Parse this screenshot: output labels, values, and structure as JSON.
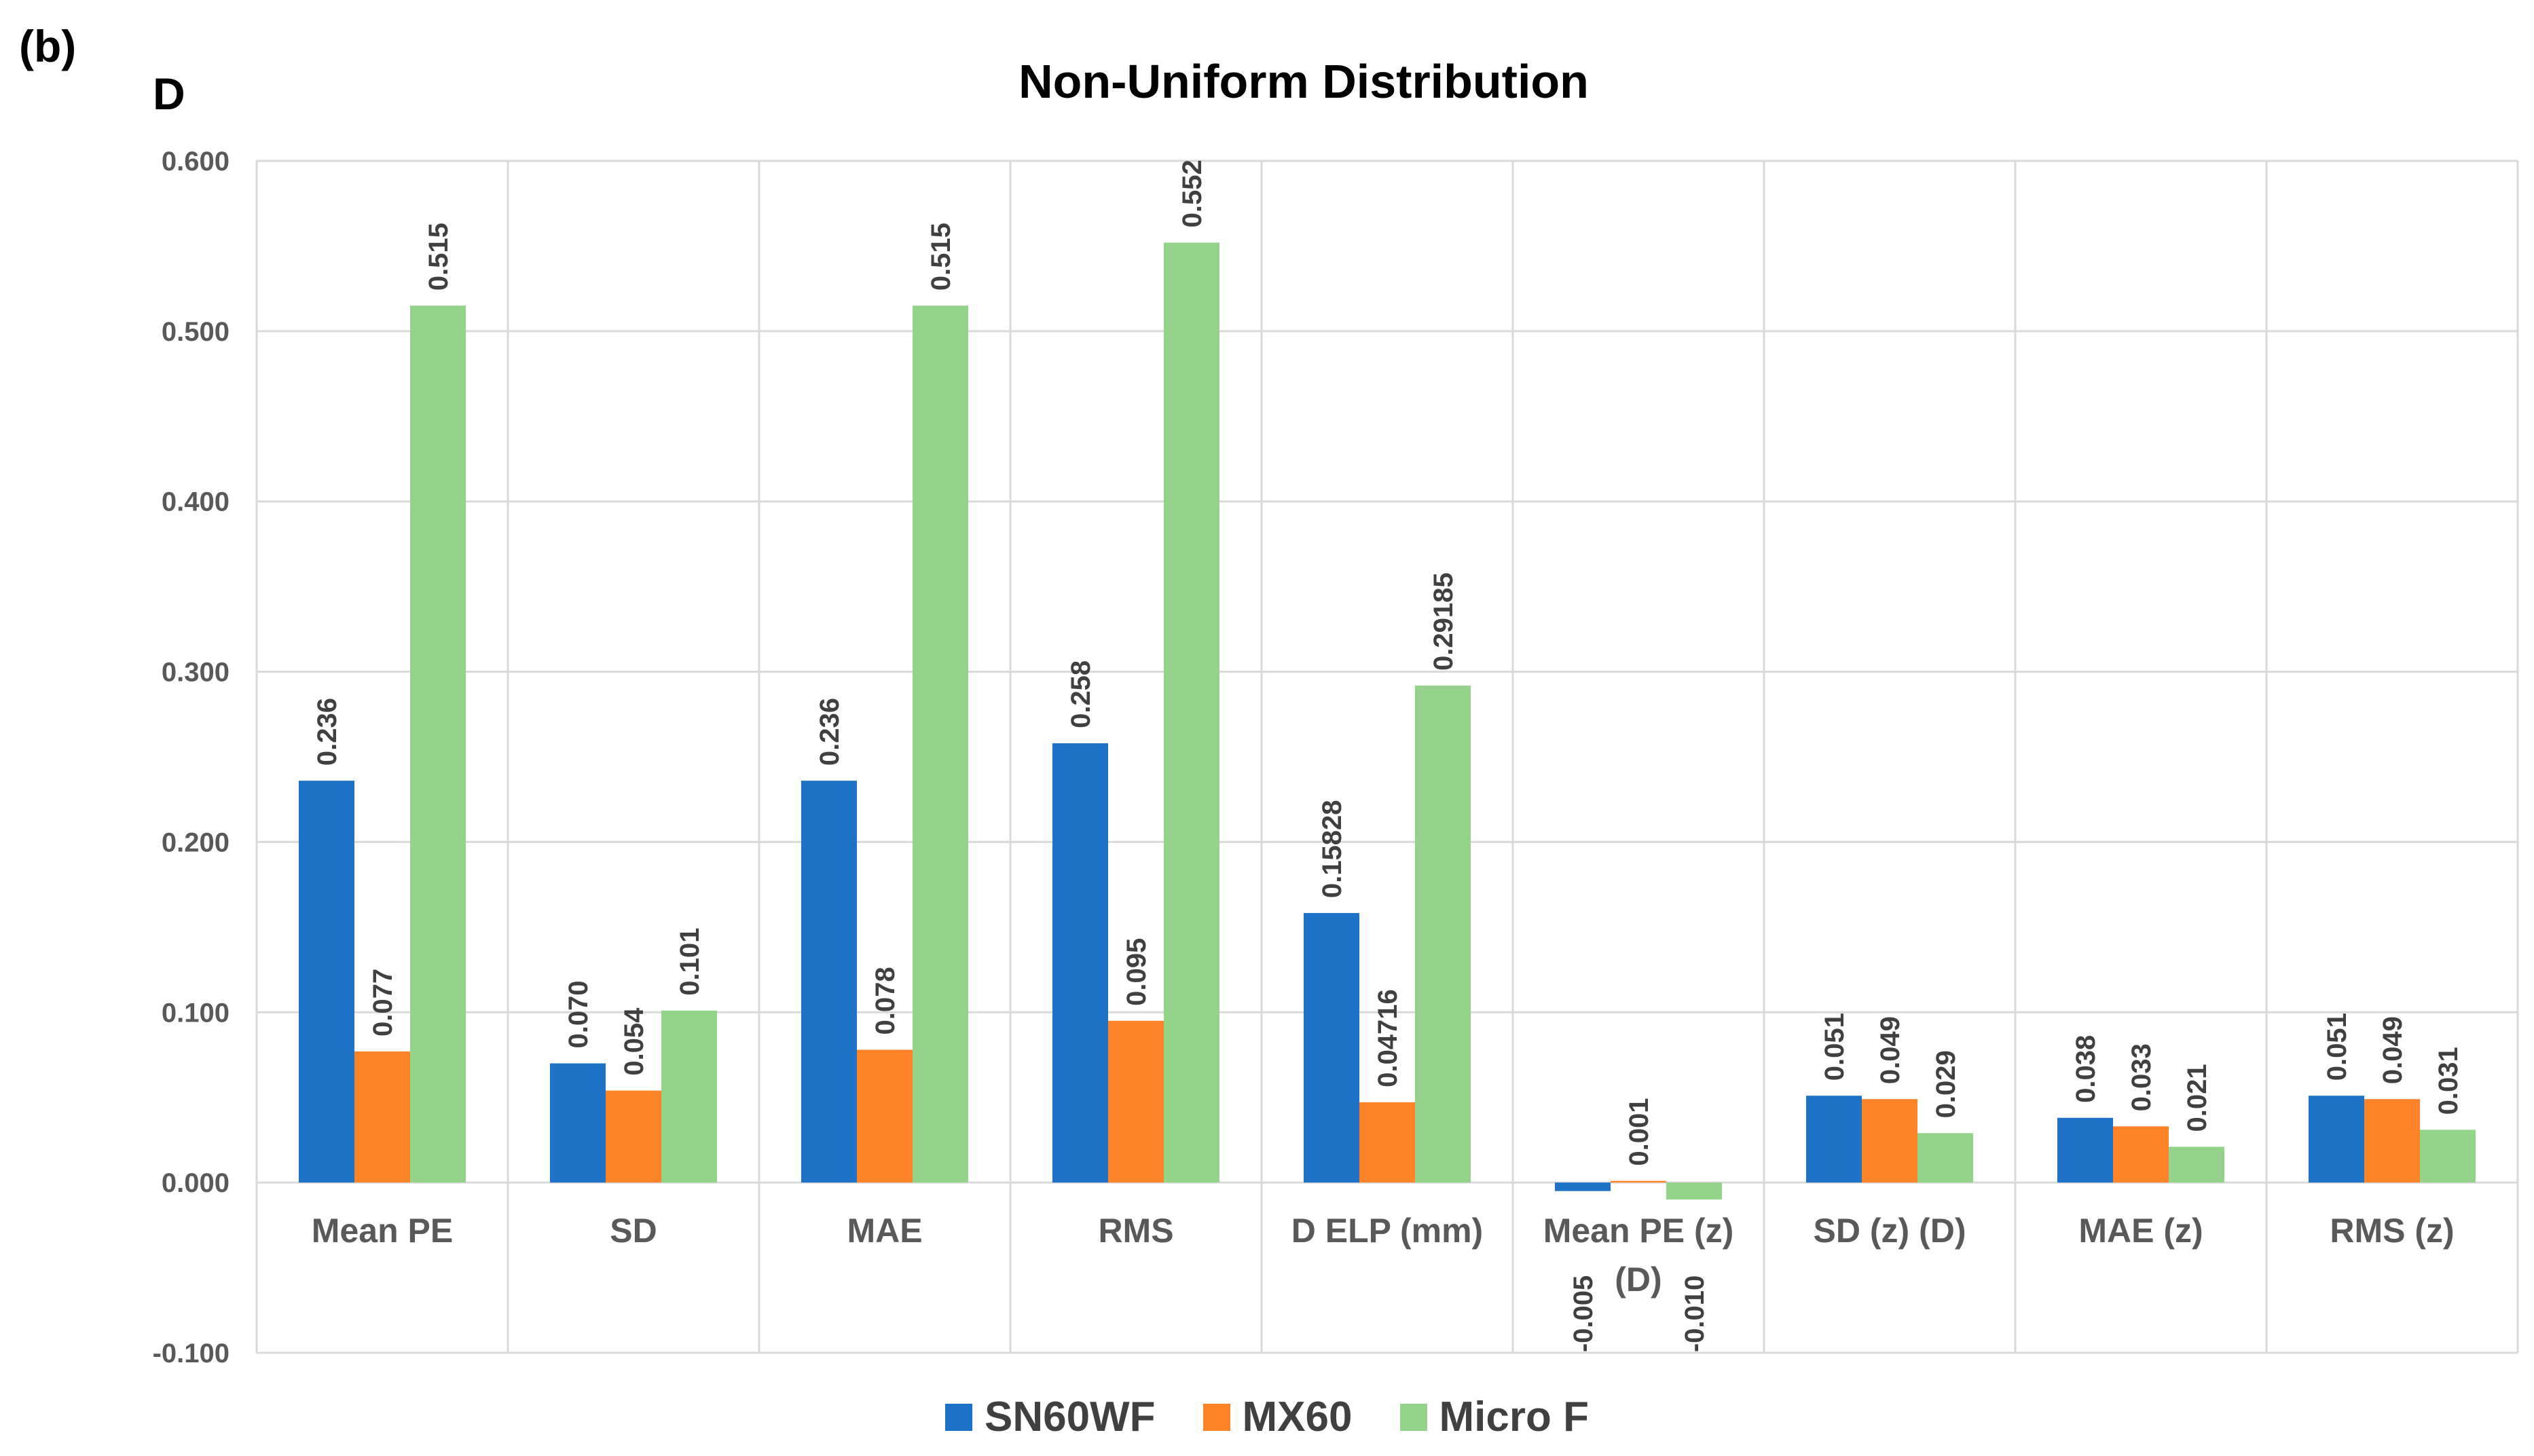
{
  "panel_label": "(b)",
  "sub_label": "D",
  "chart_data": {
    "type": "bar",
    "title": "Non-Uniform Distribution",
    "xlabel": "",
    "ylabel": "",
    "ylim": [
      -0.1,
      0.6
    ],
    "yticks": [
      -0.1,
      0.0,
      0.1,
      0.2,
      0.3,
      0.4,
      0.5,
      0.6
    ],
    "ytick_labels": [
      "-0.100",
      "0.000",
      "0.100",
      "0.200",
      "0.300",
      "0.400",
      "0.500",
      "0.600"
    ],
    "grid": true,
    "legend_position": "bottom",
    "categories": [
      [
        "Mean PE"
      ],
      [
        "SD"
      ],
      [
        "MAE"
      ],
      [
        "RMS"
      ],
      [
        "D ELP (mm)"
      ],
      [
        "Mean PE (z)",
        "(D)"
      ],
      [
        "SD (z) (D)"
      ],
      [
        "MAE (z)"
      ],
      [
        "RMS (z)"
      ]
    ],
    "series": [
      {
        "name": "SN60WF",
        "color": "#1f73c6",
        "values": [
          0.236,
          0.07,
          0.236,
          0.258,
          0.15828,
          -0.005,
          0.051,
          0.038,
          0.051
        ],
        "labels": [
          "0.236",
          "0.070",
          "0.236",
          "0.258",
          "0.15828",
          "-0.005",
          "0.051",
          "0.038",
          "0.051"
        ]
      },
      {
        "name": "MX60",
        "color": "#fd8228",
        "values": [
          0.077,
          0.054,
          0.078,
          0.095,
          0.04716,
          0.001,
          0.049,
          0.033,
          0.049
        ],
        "labels": [
          "0.077",
          "0.054",
          "0.078",
          "0.095",
          "0.04716",
          "0.001",
          "0.049",
          "0.033",
          "0.049"
        ]
      },
      {
        "name": "Micro F",
        "color": "#94d38a",
        "values": [
          0.515,
          0.101,
          0.515,
          0.552,
          0.29185,
          -0.01,
          0.029,
          0.021,
          0.031
        ],
        "labels": [
          "0.515",
          "0.101",
          "0.515",
          "0.552",
          "0.29185",
          "-0.010",
          "0.029",
          "0.021",
          "0.031"
        ]
      }
    ]
  }
}
